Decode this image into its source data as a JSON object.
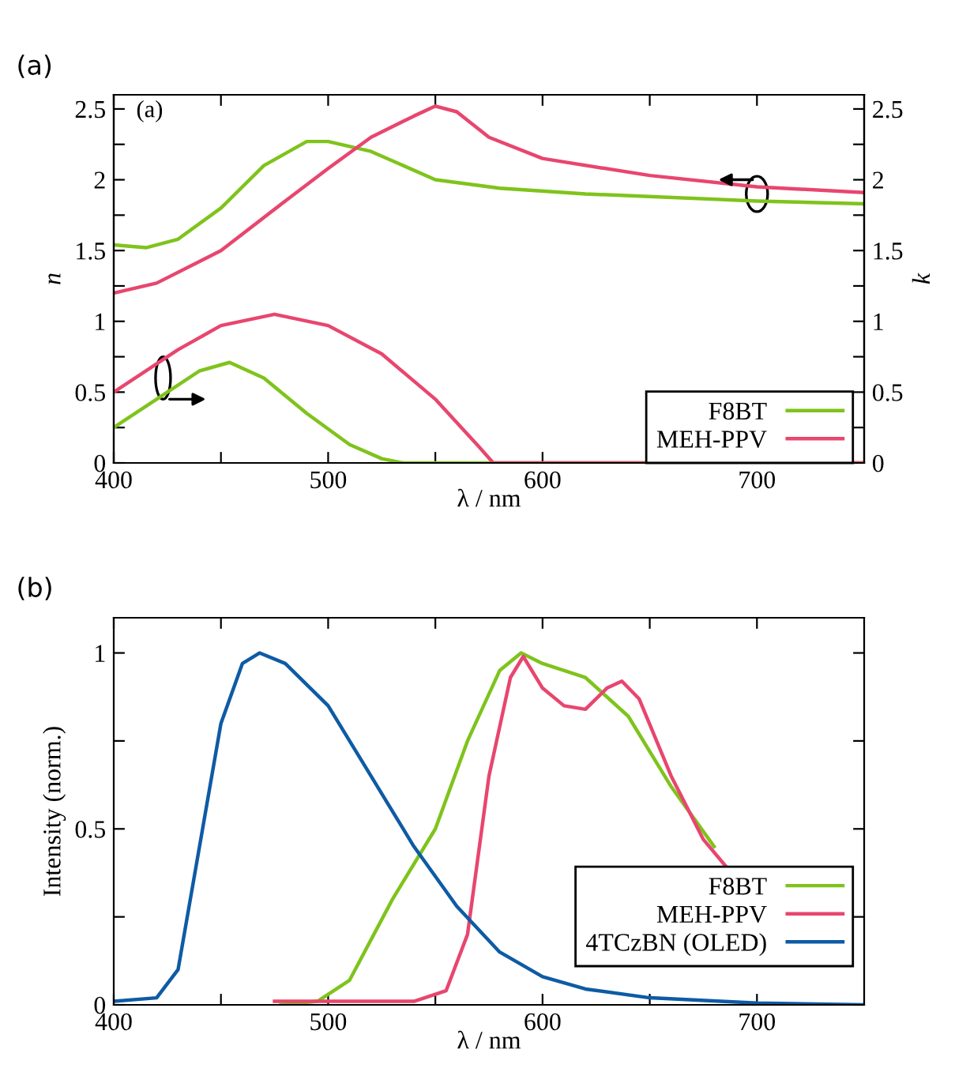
{
  "chart_data": [
    {
      "type": "line",
      "title": "(a)",
      "xlabel": "λ / nm",
      "ylabel": "n",
      "y2label": "k",
      "annotations": [
        "(a)"
      ],
      "legend": "bottom right",
      "grid": false,
      "xlim": [
        400,
        750
      ],
      "xticks": [
        400,
        {
          "value": 450,
          "label": null
        },
        500,
        {
          "value": 550,
          "label": null
        },
        600,
        {
          "value": 650,
          "label": null
        },
        700
      ],
      "ylim": [
        0,
        2.6
      ],
      "yticks": [
        0,
        {
          "value": 0.25,
          "label": null
        },
        0.5,
        {
          "value": 0.75,
          "label": null
        },
        1,
        {
          "value": 1.25,
          "label": null
        },
        1.5,
        {
          "value": 1.75,
          "label": null
        },
        2,
        {
          "value": 2.25,
          "label": null
        },
        2.5
      ],
      "y2lim": [
        0,
        2.6
      ],
      "y2ticks": [
        0,
        {
          "value": 0.25,
          "label": null
        },
        0.5,
        {
          "value": 0.75,
          "label": null
        },
        1,
        {
          "value": 1.25,
          "label": null
        },
        1.5,
        {
          "value": 1.75,
          "label": null
        },
        2,
        {
          "value": 2.25,
          "label": null
        },
        2.5
      ],
      "series": [
        {
          "name": "F8BT",
          "color": "#7fc31c",
          "x": [
            400,
            415,
            430,
            450,
            470,
            490,
            500,
            520,
            550,
            580,
            620,
            700,
            750
          ],
          "values": [
            1.54,
            1.52,
            1.58,
            1.8,
            2.1,
            2.27,
            2.27,
            2.2,
            2.0,
            1.94,
            1.9,
            1.85,
            1.83
          ]
        },
        {
          "name": "MEH-PPV",
          "color": "#e8466e",
          "x": [
            400,
            420,
            450,
            480,
            500,
            520,
            540,
            550,
            560,
            575,
            600,
            650,
            700,
            750
          ],
          "values": [
            1.2,
            1.27,
            1.5,
            1.85,
            2.08,
            2.3,
            2.45,
            2.52,
            2.48,
            2.3,
            2.15,
            2.03,
            1.95,
            1.91
          ]
        },
        {
          "color": "#7fc31c",
          "axis": "y2",
          "x": [
            400,
            420,
            440,
            454,
            470,
            490,
            510,
            525,
            535,
            750
          ],
          "values": [
            0.25,
            0.45,
            0.65,
            0.71,
            0.6,
            0.35,
            0.13,
            0.03,
            0,
            0
          ]
        },
        {
          "color": "#e8466e",
          "axis": "y2",
          "x": [
            400,
            430,
            450,
            475,
            500,
            525,
            550,
            570,
            577,
            750
          ],
          "values": [
            0.5,
            0.8,
            0.97,
            1.05,
            0.97,
            0.77,
            0.45,
            0.12,
            0,
            0
          ]
        }
      ]
    },
    {
      "type": "line",
      "title": "(b)",
      "xlabel": "λ / nm",
      "ylabel": "Intensity (norm.)",
      "legend": "bottom right",
      "grid": false,
      "xlim": [
        400,
        750
      ],
      "xticks": [
        400,
        {
          "value": 450,
          "label": null
        },
        500,
        {
          "value": 550,
          "label": null
        },
        600,
        {
          "value": 650,
          "label": null
        },
        700
      ],
      "ylim": [
        0,
        1.1
      ],
      "yticks": [
        0,
        {
          "value": 0.25,
          "label": null
        },
        0.5,
        {
          "value": 0.75,
          "label": null
        },
        1
      ],
      "series": [
        {
          "name": "F8BT",
          "color": "#7fc31c",
          "x": [
            478,
            495,
            510,
            530,
            550,
            565,
            580,
            590,
            600,
            620,
            640,
            660,
            680
          ],
          "values": [
            0,
            0.01,
            0.07,
            0.3,
            0.5,
            0.75,
            0.95,
            1.0,
            0.97,
            0.93,
            0.82,
            0.62,
            0.45
          ]
        },
        {
          "name": "MEH-PPV",
          "color": "#e8466e",
          "x": [
            475,
            540,
            555,
            565,
            575,
            585,
            591,
            600,
            610,
            620,
            630,
            637,
            645,
            660,
            675,
            686
          ],
          "values": [
            0.01,
            0.01,
            0.04,
            0.2,
            0.65,
            0.93,
            0.99,
            0.9,
            0.85,
            0.84,
            0.9,
            0.92,
            0.87,
            0.65,
            0.47,
            0.39
          ]
        },
        {
          "name": "4TCzBN (OLED)",
          "color": "#0e5ba4",
          "x": [
            400,
            420,
            430,
            440,
            450,
            460,
            468,
            480,
            500,
            520,
            540,
            560,
            580,
            600,
            620,
            650,
            700,
            750
          ],
          "values": [
            0.01,
            0.02,
            0.1,
            0.45,
            0.8,
            0.97,
            1.0,
            0.97,
            0.85,
            0.65,
            0.45,
            0.28,
            0.15,
            0.08,
            0.045,
            0.02,
            0.005,
            0
          ]
        }
      ]
    }
  ]
}
